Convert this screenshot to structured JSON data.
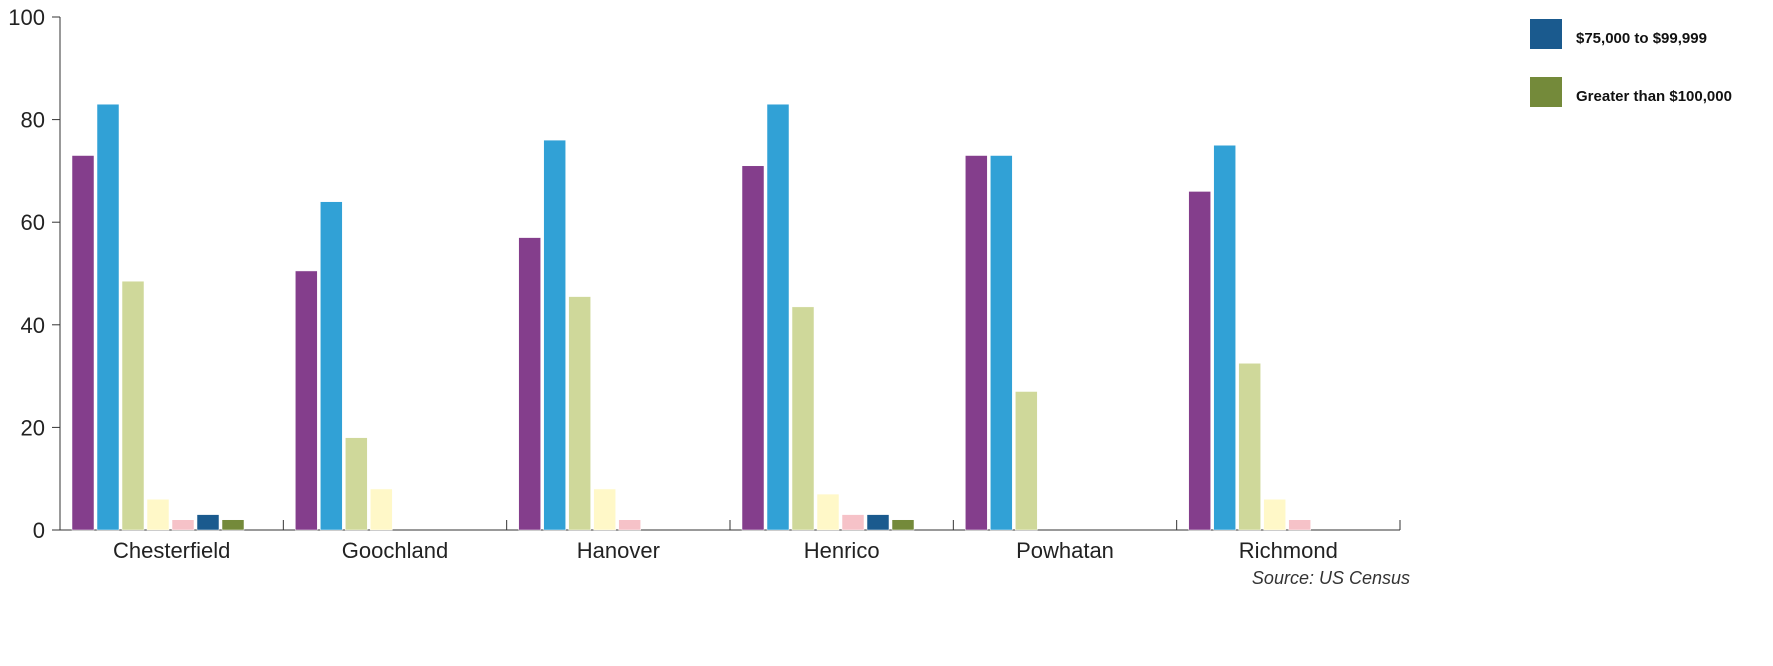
{
  "chart_data": {
    "type": "bar",
    "title": "",
    "xlabel": "",
    "ylabel": "",
    "ylim": [
      0,
      100
    ],
    "yticks": [
      0,
      20,
      40,
      60,
      80,
      100
    ],
    "grid": false,
    "legend_position": "top-right",
    "categories": [
      "Chesterfield",
      "Goochland",
      "Hanover",
      "Henrico",
      "Powhatan",
      "Richmond"
    ],
    "series": [
      {
        "color": "#843e8c",
        "values": [
          73,
          50.5,
          57,
          71,
          73,
          66
        ]
      },
      {
        "color": "#31a1d6",
        "values": [
          83,
          64,
          76,
          83,
          73,
          75
        ]
      },
      {
        "color": "#cfd89a",
        "values": [
          48.5,
          18,
          45.5,
          43.5,
          27,
          32.5
        ]
      },
      {
        "color": "#fff8c8",
        "values": [
          6,
          8,
          8,
          7,
          0,
          6
        ]
      },
      {
        "color": "#f6c2c8",
        "values": [
          2,
          0,
          2,
          3,
          0,
          2
        ]
      },
      {
        "name": "$75,000 to $99,999",
        "color": "#1a5a8e",
        "values": [
          3,
          0,
          0,
          3,
          0,
          0
        ]
      },
      {
        "name": "Greater than $100,000",
        "color": "#748a3a",
        "values": [
          2,
          0,
          0,
          2,
          0,
          0
        ]
      }
    ],
    "source": "Source: US Census"
  }
}
